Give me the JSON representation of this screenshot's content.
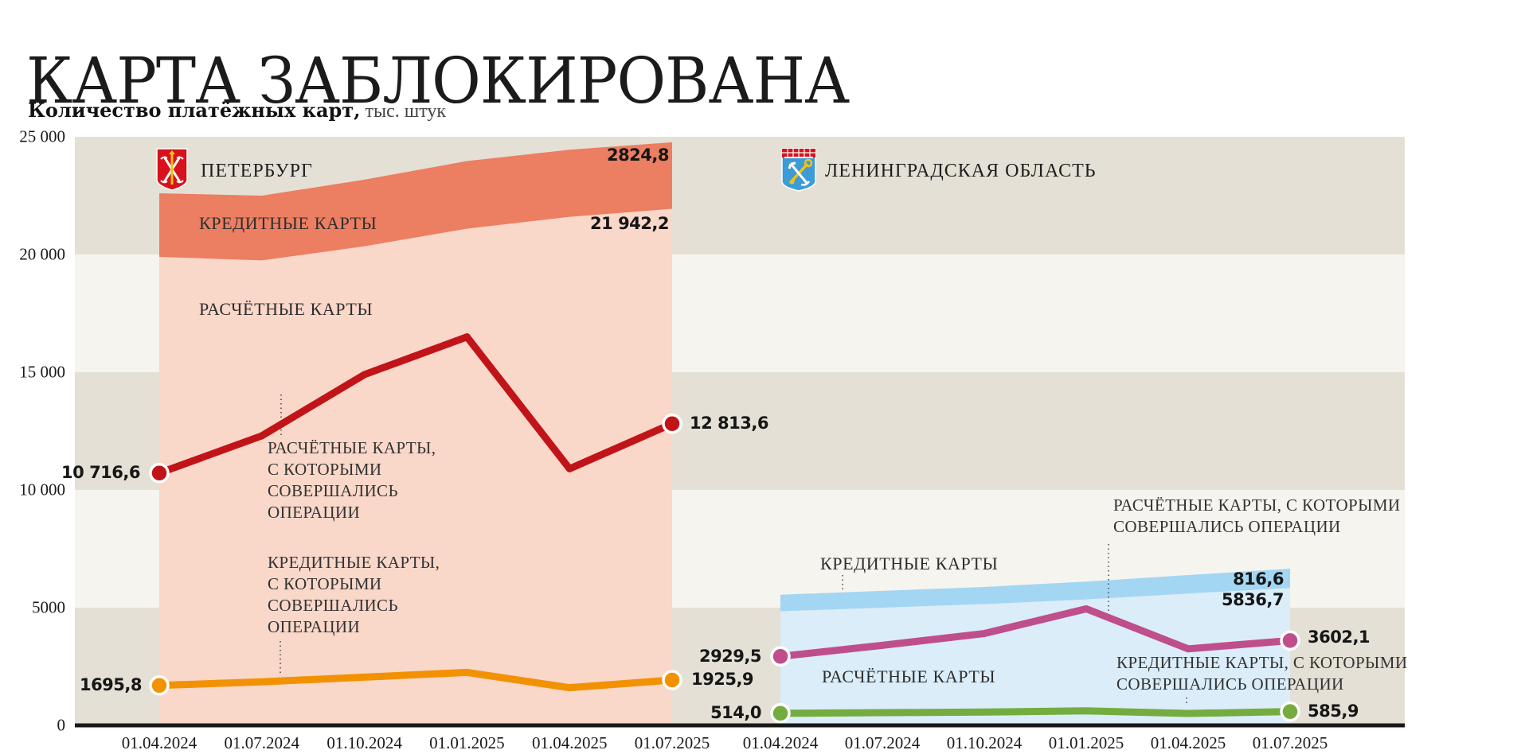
{
  "page": {
    "title": "КАРТА ЗАБЛОКИРОВАНА",
    "subtitle_bold": "Количество платёжных карт,",
    "subtitle_unit": " тыс. штук"
  },
  "axis": {
    "ylim": [
      0,
      25000
    ],
    "y_ticks": [
      {
        "value": 25000,
        "label": "25 000"
      },
      {
        "value": 20000,
        "label": "20 000"
      },
      {
        "value": 15000,
        "label": "15 000"
      },
      {
        "value": 10000,
        "label": "10 000"
      },
      {
        "value": 5000,
        "label": "5000"
      },
      {
        "value": 0,
        "label": "0"
      }
    ],
    "x_labels": [
      "01.04.2024",
      "01.07.2024",
      "01.10.2024",
      "01.01.2025",
      "01.04.2025",
      "01.07.2025"
    ]
  },
  "colors": {
    "stripe_dark": "#e4e0d5",
    "stripe_light": "#f6f4ee",
    "axis": "#181818",
    "spb_area_debit": "#f9d7c9",
    "spb_area_credit": "#ec7e61",
    "spb_line_debit_ops": "#c11418",
    "spb_line_credit_ops": "#f29202",
    "lo_area_debit": "#daedf9",
    "lo_area_credit": "#a3d6f2",
    "lo_line_debit_ops": "#bf4e8d",
    "lo_line_credit_ops": "#75ac40"
  },
  "chart_data": [
    {
      "type": "area+line",
      "region": "ПЕТЕРБУРГ",
      "crest": "spb-coat-of-arms",
      "x": [
        "01.04.2024",
        "01.07.2024",
        "01.10.2024",
        "01.01.2025",
        "01.04.2025",
        "01.07.2025"
      ],
      "series": [
        {
          "name": "РАСЧЁТНЫЕ КАРТЫ",
          "label": "РАСЧЁТНЫЕ КАРТЫ",
          "kind": "area",
          "color": "#f9d7c9",
          "values": [
            19900,
            19750,
            20350,
            21100,
            21600,
            21942.2
          ],
          "end_label": "21 942,2"
        },
        {
          "name": "КРЕДИТНЫЕ КАРТЫ",
          "label": "КРЕДИТНЫЕ КАРТЫ",
          "kind": "area-stacked",
          "color": "#ec7e61",
          "values": [
            2700,
            2750,
            2830,
            2870,
            2850,
            2824.8
          ],
          "end_label": "2824,8"
        },
        {
          "name": "РАСЧЁТНЫЕ КАРТЫ, С КОТОРЫМИ СОВЕРШАЛИСЬ ОПЕРАЦИИ",
          "label": "РАСЧЁТНЫЕ КАРТЫ,\nС КОТОРЫМИ\nСОВЕРШАЛИСЬ\nОПЕРАЦИИ",
          "kind": "line",
          "color": "#c11418",
          "values": [
            10716.6,
            12300,
            14900,
            16500,
            10900,
            12813.6
          ],
          "start_label": "10 716,6",
          "end_label": "12 813,6"
        },
        {
          "name": "КРЕДИТНЫЕ КАРТЫ, С КОТОРЫМИ СОВЕРШАЛИСЬ ОПЕРАЦИИ",
          "label": "КРЕДИТНЫЕ КАРТЫ,\nС КОТОРЫМИ\nСОВЕРШАЛИСЬ\nОПЕРАЦИИ",
          "kind": "line",
          "color": "#f29202",
          "values": [
            1695.8,
            1850,
            2050,
            2250,
            1600,
            1925.9
          ],
          "start_label": "1695,8",
          "end_label": "1925,9"
        }
      ]
    },
    {
      "type": "area+line",
      "region": "ЛЕНИНГРАДСКАЯ ОБЛАСТЬ",
      "crest": "leningrad-oblast-coat-of-arms",
      "x": [
        "01.04.2024",
        "01.07.2024",
        "01.10.2024",
        "01.01.2025",
        "01.04.2025",
        "01.07.2025"
      ],
      "series": [
        {
          "name": "РАСЧЁТНЫЕ КАРТЫ",
          "label": "РАСЧЁТНЫЕ КАРТЫ",
          "kind": "area",
          "color": "#daedf9",
          "values": [
            4850,
            5000,
            5150,
            5350,
            5600,
            5836.7
          ],
          "end_label": "5836,7"
        },
        {
          "name": "КРЕДИТНЫЕ КАРТЫ",
          "label": "КРЕДИТНЫЕ КАРТЫ",
          "kind": "area-stacked",
          "color": "#a3d6f2",
          "values": [
            700,
            715,
            730,
            755,
            785,
            816.6
          ],
          "end_label": "816,6"
        },
        {
          "name": "РАСЧЁТНЫЕ КАРТЫ, С КОТОРЫМИ СОВЕРШАЛИСЬ ОПЕРАЦИИ",
          "label": "РАСЧЁТНЫЕ КАРТЫ, С КОТОРЫМИ\nСОВЕРШАЛИСЬ ОПЕРАЦИИ",
          "kind": "line",
          "color": "#bf4e8d",
          "values": [
            2929.5,
            3400,
            3900,
            4950,
            3250,
            3602.1
          ],
          "start_label": "2929,5",
          "end_label": "3602,1"
        },
        {
          "name": "КРЕДИТНЫЕ КАРТЫ, С КОТОРЫМИ СОВЕРШАЛИСЬ ОПЕРАЦИИ",
          "label": "КРЕДИТНЫЕ КАРТЫ, С КОТОРЫМИ\nСОВЕРШАЛИСЬ ОПЕРАЦИИ",
          "kind": "line",
          "color": "#75ac40",
          "values": [
            514.0,
            540,
            565,
            615,
            505,
            585.9
          ],
          "start_label": "514,0",
          "end_label": "585,9"
        }
      ]
    }
  ]
}
